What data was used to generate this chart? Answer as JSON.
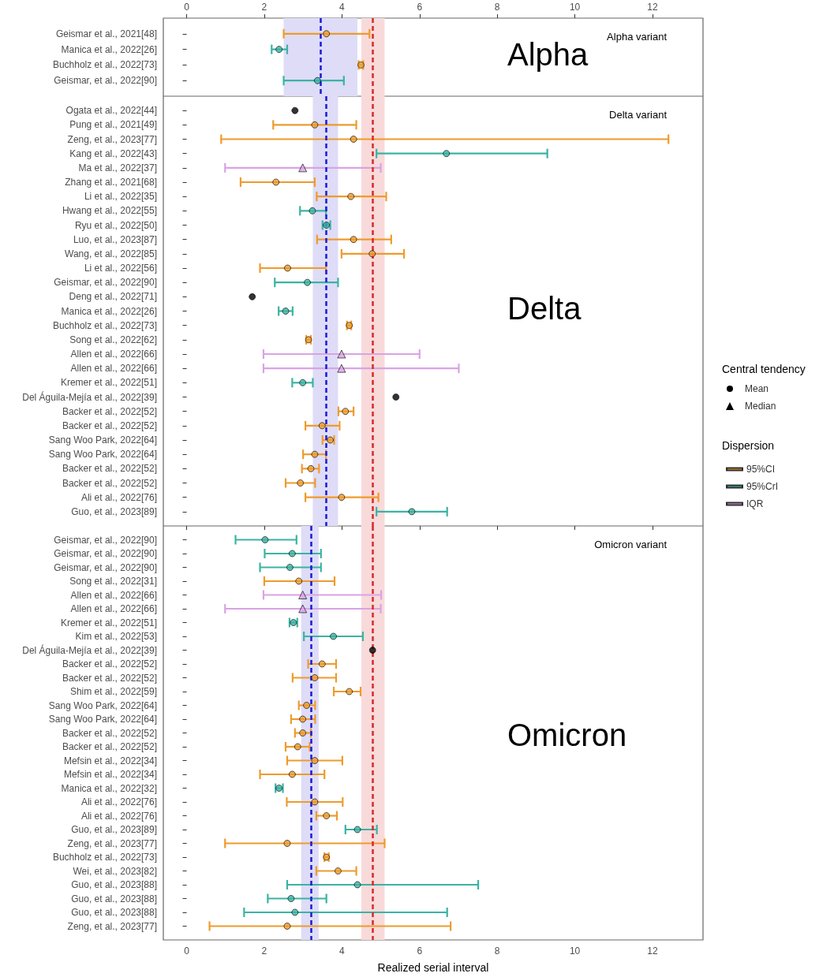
{
  "chart_data": [
    {
      "type": "scatter",
      "orientation": "horizontal",
      "title": "Alpha variant",
      "annotations": [
        "Alpha"
      ],
      "categories": [
        "Geismar et al., 2021[48]",
        "Manica et al., 2022[26]",
        "Buchholz et al., 2022[73]",
        "Geismar, et al., 2022[90]"
      ],
      "x2lim": [
        -0.6,
        13.3
      ],
      "x2ticks": [
        0,
        2,
        4,
        6,
        8,
        10,
        12
      ],
      "ref_lines": [
        {
          "axis": "x2",
          "value": 3.45,
          "color": "#1a1ad6",
          "line_style": "dashed"
        },
        {
          "axis": "x2",
          "value": 4.8,
          "color": "#d62a2a",
          "line_style": "dashed"
        }
      ],
      "bands": [
        {
          "axis": "x2",
          "from": 2.5,
          "to": 4.4,
          "color": "#dedcf7"
        },
        {
          "axis": "x2",
          "from": 4.5,
          "to": 5.1,
          "color": "#f8dada"
        }
      ],
      "series": [
        {
          "axis": "x2",
          "color": "#ee9b2d",
          "marker": "circle",
          "values": [
            3.6,
            null,
            4.49,
            null
          ],
          "errors": [
            [
              2.5,
              4.71
            ],
            null,
            [
              4.43,
              4.55
            ],
            null
          ]
        },
        {
          "axis": "x2",
          "color": "#3bb3a3",
          "marker": "circle",
          "values": [
            null,
            2.38,
            null,
            3.37
          ],
          "errors": [
            null,
            [
              2.19,
              2.59
            ],
            null,
            [
              2.5,
              4.05
            ]
          ]
        }
      ]
    },
    {
      "type": "scatter",
      "orientation": "horizontal",
      "title": "Delta variant",
      "annotations": [
        "Delta",
        "Central tendency",
        "Mean",
        "Median"
      ],
      "tick_labels": "y",
      "legend": "right",
      "legend_title": "Dispersion",
      "categories": [
        "Ogata et al., 2022[44]",
        "Pung et al., 2021[49]",
        "Zeng, et al., 2023[77]",
        "Kang et al., 2022[43]",
        "Ma et al., 2022[37]",
        "Zhang et al., 2021[68]",
        "Li et al., 2022[35]",
        "Hwang et al., 2022[55]",
        "Ryu et al., 2022[50]",
        "Luo, et al., 2023[87]",
        "Wang, et al., 2022[85]",
        "Li et al., 2022[56]",
        "Geismar, et al., 2022[90]",
        "Deng et al., 2022[71]",
        "Manica et al., 2022[26]",
        "Buchholz et al., 2022[73]",
        "Song et al., 2022[62]",
        "Allen et al., 2022[66]",
        "Allen et al., 2022[66]",
        "Kremer et al., 2022[51]",
        "Del Águila-Mejía et al., 2022[39]",
        "Backer et al., 2022[52]",
        "Backer et al., 2022[52]",
        "Sang Woo Park, 2022[64]",
        "Sang Woo Park, 2022[64]",
        "Backer et al., 2022[52]",
        "Backer et al., 2022[52]",
        "Ali et al., 2022[76]",
        "Guo, et al., 2023[89]"
      ],
      "xlim": [
        -0.6,
        13.3
      ],
      "xticks": [
        0,
        2,
        4,
        6,
        8,
        10,
        12
      ],
      "ref_lines": [
        {
          "axis": "x",
          "value": 3.6,
          "color": "#1a1ad6",
          "line_style": "dashed"
        },
        {
          "axis": "x",
          "value": 4.8,
          "color": "#d62a2a",
          "line_style": "dashed"
        }
      ],
      "bands": [
        {
          "axis": "x",
          "from": 3.25,
          "to": 3.9,
          "color": "#dedcf7"
        },
        {
          "axis": "x",
          "from": 4.5,
          "to": 5.1,
          "color": "#f8dada"
        }
      ],
      "series": [
        {
          "name": "95%CI",
          "color": "#ee9b2d",
          "marker": "circle",
          "values": [
            null,
            3.3,
            4.3,
            null,
            null,
            2.3,
            4.23,
            null,
            null,
            4.3,
            4.78,
            2.6,
            null,
            null,
            null,
            4.19,
            3.14,
            null,
            null,
            null,
            null,
            4.09,
            3.49,
            3.7,
            3.3,
            3.2,
            2.93,
            3.99,
            null
          ],
          "errors": [
            null,
            [
              2.23,
              4.37
            ],
            [
              0.89,
              12.41
            ],
            null,
            null,
            [
              1.39,
              3.3
            ],
            [
              3.35,
              5.14
            ],
            null,
            null,
            [
              3.36,
              5.27
            ],
            [
              3.99,
              5.6
            ],
            [
              1.89,
              3.59
            ],
            null,
            null,
            null,
            [
              4.13,
              4.24
            ],
            [
              3.08,
              3.2
            ],
            null,
            null,
            null,
            null,
            [
              3.91,
              4.3
            ],
            [
              3.06,
              3.94
            ],
            [
              3.5,
              3.8
            ],
            [
              3.0,
              3.59
            ],
            [
              2.97,
              3.41
            ],
            [
              2.55,
              3.31
            ],
            [
              3.06,
              4.94
            ],
            null
          ]
        },
        {
          "name": "95%CrI",
          "color": "#3bb3a3",
          "marker": "circle",
          "values": [
            null,
            null,
            null,
            6.69,
            null,
            null,
            null,
            3.24,
            3.6,
            null,
            null,
            null,
            3.11,
            null,
            2.55,
            null,
            null,
            null,
            null,
            2.99,
            null,
            null,
            null,
            null,
            null,
            null,
            null,
            null,
            5.8
          ],
          "errors": [
            null,
            null,
            null,
            [
              4.89,
              9.29
            ],
            null,
            null,
            null,
            [
              2.92,
              3.59
            ],
            [
              3.5,
              3.7
            ],
            null,
            null,
            null,
            [
              2.27,
              3.9
            ],
            null,
            [
              2.37,
              2.73
            ],
            null,
            null,
            null,
            null,
            [
              2.72,
              3.25
            ],
            null,
            null,
            null,
            null,
            null,
            null,
            null,
            null,
            [
              4.89,
              6.71
            ]
          ]
        },
        {
          "name": "IQR",
          "color": "#d9a3e3",
          "marker": "triangle",
          "values": [
            null,
            null,
            null,
            null,
            2.99,
            null,
            null,
            null,
            null,
            null,
            null,
            null,
            null,
            null,
            null,
            null,
            null,
            3.99,
            3.99,
            null,
            null,
            null,
            null,
            null,
            null,
            null,
            null,
            null,
            null
          ],
          "errors": [
            null,
            null,
            null,
            null,
            [
              0.99,
              5.0
            ],
            null,
            null,
            null,
            null,
            null,
            null,
            null,
            null,
            null,
            null,
            null,
            null,
            [
              1.98,
              6.0
            ],
            [
              1.98,
              7.01
            ],
            null,
            null,
            null,
            null,
            null,
            null,
            null,
            null,
            null,
            null
          ]
        },
        {
          "color": "#000000",
          "marker": "circle",
          "values": [
            2.79,
            null,
            null,
            null,
            null,
            null,
            null,
            null,
            null,
            null,
            null,
            null,
            null,
            1.69,
            null,
            null,
            null,
            null,
            null,
            null,
            5.39,
            null,
            null,
            null,
            null,
            null,
            null,
            null,
            null
          ]
        }
      ]
    },
    {
      "type": "scatter",
      "orientation": "horizontal",
      "title": "Omicron variant",
      "annotations": [
        "Omicron"
      ],
      "xlabel": "Realized serial interval",
      "categories": [
        "Geismar, et al., 2022[90]",
        "Geismar, et al., 2022[90]",
        "Geismar, et al., 2022[90]",
        "Song et al., 2022[31]",
        "Allen et al., 2022[66]",
        "Allen et al., 2022[66]",
        "Kremer et al., 2022[51]",
        "Kim et al., 2022[53]",
        "Del Águila-Mejía et al., 2022[39]",
        "Backer et al., 2022[52]",
        "Backer et al., 2022[52]",
        "Shim et al., 2022[59]",
        "Sang Woo Park, 2022[64]",
        "Sang Woo Park, 2022[64]",
        "Backer et al., 2022[52]",
        "Backer et al., 2022[52]",
        "Mefsin et al., 2022[34]",
        "Mefsin et al., 2022[34]",
        "Manica et al., 2022[32]",
        "Ali et al., 2022[76]",
        "Ali et al., 2022[76]",
        "Guo, et al., 2023[89]",
        "Zeng, et al., 2023[77]",
        "Buchholz et al., 2022[73]",
        "Wei, et al., 2023[82]",
        "Guo, et al., 2023[88]",
        "Guo, et al., 2023[88]",
        "Guo, et al., 2023[88]",
        "Zeng, et al., 2023[77]"
      ],
      "xlim": [
        -0.6,
        13.3
      ],
      "xticks": [
        0,
        2,
        4,
        6,
        8,
        10,
        12
      ],
      "ref_lines": [
        {
          "axis": "x",
          "value": 3.2,
          "color": "#1a1ad6",
          "line_style": "dashed"
        },
        {
          "axis": "x",
          "value": 4.8,
          "color": "#d62a2a",
          "line_style": "dashed"
        }
      ],
      "bands": [
        {
          "axis": "x",
          "from": 2.95,
          "to": 3.4,
          "color": "#dedcf7"
        },
        {
          "axis": "x",
          "from": 4.5,
          "to": 5.1,
          "color": "#f8dada"
        }
      ],
      "series": [
        {
          "color": "#ee9b2d",
          "marker": "circle",
          "values": [
            null,
            null,
            null,
            2.89,
            null,
            null,
            null,
            null,
            null,
            3.49,
            3.3,
            4.19,
            3.09,
            2.99,
            2.99,
            2.86,
            3.3,
            2.72,
            null,
            3.3,
            3.6,
            null,
            2.59,
            3.6,
            3.9,
            null,
            null,
            null,
            2.59
          ],
          "errors": [
            null,
            null,
            null,
            [
              2.0,
              3.81
            ],
            null,
            null,
            null,
            null,
            null,
            [
              3.13,
              3.85
            ],
            [
              2.73,
              3.85
            ],
            [
              3.79,
              4.48
            ],
            [
              2.89,
              3.31
            ],
            [
              2.69,
              3.31
            ],
            [
              2.79,
              3.2
            ],
            [
              2.55,
              3.17
            ],
            [
              2.59,
              4.01
            ],
            [
              1.89,
              3.55
            ],
            null,
            [
              2.58,
              4.02
            ],
            [
              3.34,
              3.87
            ],
            null,
            [
              0.99,
              5.1
            ],
            [
              3.55,
              3.66
            ],
            [
              3.34,
              4.37
            ],
            null,
            null,
            null,
            [
              0.59,
              6.8
            ]
          ]
        },
        {
          "color": "#3bb3a3",
          "marker": "circle",
          "values": [
            2.02,
            2.72,
            2.66,
            null,
            null,
            null,
            2.75,
            3.78,
            null,
            null,
            null,
            null,
            null,
            null,
            null,
            null,
            null,
            null,
            2.38,
            null,
            null,
            4.4,
            null,
            null,
            null,
            4.4,
            2.69,
            2.79,
            null
          ],
          "errors": [
            [
              1.26,
              2.83
            ],
            [
              2.01,
              3.46
            ],
            [
              1.89,
              3.46
            ],
            null,
            null,
            null,
            [
              2.65,
              2.85
            ],
            [
              3.02,
              4.54
            ],
            null,
            null,
            null,
            null,
            null,
            null,
            null,
            null,
            null,
            null,
            [
              2.29,
              2.48
            ],
            null,
            null,
            [
              4.09,
              4.9
            ],
            null,
            null,
            null,
            [
              2.59,
              7.51
            ],
            [
              2.09,
              3.6
            ],
            [
              1.48,
              6.71
            ],
            null
          ]
        },
        {
          "color": "#d9a3e3",
          "marker": "triangle",
          "values": [
            null,
            null,
            null,
            null,
            2.99,
            2.99,
            null,
            null,
            null,
            null,
            null,
            null,
            null,
            null,
            null,
            null,
            null,
            null,
            null,
            null,
            null,
            null,
            null,
            null,
            null,
            null,
            null,
            null,
            null
          ],
          "errors": [
            null,
            null,
            null,
            null,
            [
              1.98,
              5.01
            ],
            [
              0.99,
              5.0
            ],
            null,
            null,
            null,
            null,
            null,
            null,
            null,
            null,
            null,
            null,
            null,
            null,
            null,
            null,
            null,
            null,
            null,
            null,
            null,
            null,
            null,
            null,
            null
          ]
        },
        {
          "color": "#000000",
          "marker": "circle",
          "values": [
            null,
            null,
            null,
            null,
            null,
            null,
            null,
            null,
            4.79,
            null,
            null,
            null,
            null,
            null,
            null,
            null,
            null,
            null,
            null,
            null,
            null,
            null,
            null,
            null,
            null,
            null,
            null,
            null,
            null
          ]
        }
      ]
    }
  ]
}
